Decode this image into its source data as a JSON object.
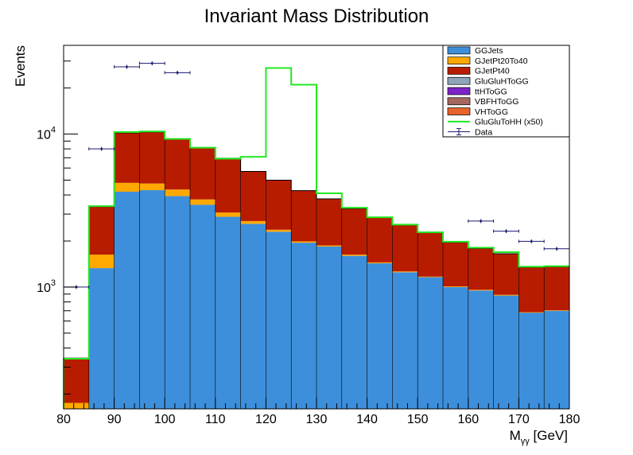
{
  "chart_data": {
    "type": "bar",
    "title": "Invariant Mass Distribution",
    "xlabel": "M",
    "xlabel_sub": "γγ",
    "xlabel_unit": "[GeV]",
    "ylabel": "Events",
    "xlim": [
      80,
      180
    ],
    "ylim": [
      160,
      38000
    ],
    "yscale": "log",
    "x_ticks": [
      80,
      90,
      100,
      110,
      120,
      130,
      140,
      150,
      160,
      170,
      180
    ],
    "y_major_ticks": [
      {
        "value": 1000,
        "base": "10",
        "exp": "3"
      },
      {
        "value": 10000,
        "base": "10",
        "exp": "4"
      }
    ],
    "bin_edges": [
      80,
      85,
      90,
      95,
      100,
      105,
      110,
      115,
      120,
      125,
      130,
      135,
      140,
      145,
      150,
      155,
      160,
      165,
      170,
      175,
      180
    ],
    "stack": [
      {
        "name": "GGJets",
        "color": "#3d8fdb",
        "values": [
          0,
          1330,
          4200,
          4300,
          3930,
          3450,
          2880,
          2590,
          2300,
          1950,
          1840,
          1600,
          1430,
          1250,
          1160,
          1000,
          950,
          880,
          680,
          700
        ]
      },
      {
        "name": "GJetPt20To40",
        "color": "#ffa800",
        "values": [
          175,
          300,
          600,
          450,
          410,
          290,
          190,
          110,
          70,
          40,
          30,
          30,
          20,
          15,
          10,
          10,
          10,
          10,
          5,
          5
        ]
      },
      {
        "name": "GJetPt40",
        "color": "#b81c00",
        "values": [
          168,
          1730,
          5400,
          5550,
          4920,
          4380,
          3880,
          3000,
          2630,
          2280,
          1900,
          1630,
          1400,
          1280,
          1100,
          950,
          830,
          760,
          665,
          655
        ]
      },
      {
        "name": "GluGluHToGG",
        "color": "#8da4b9",
        "values": []
      },
      {
        "name": "ttHToGG",
        "color": "#7d22c8",
        "values": []
      },
      {
        "name": "VBFHToGG",
        "color": "#a5675f",
        "values": []
      },
      {
        "name": "VHToGG",
        "color": "#e8632a",
        "values": []
      }
    ],
    "signal": {
      "name": "GluGluToHH (x50)",
      "color": "#22e822",
      "values": [
        340,
        3380,
        10300,
        10400,
        9300,
        8150,
        6900,
        7100,
        27000,
        21000,
        4100,
        3300,
        2860,
        2560,
        2280,
        1980,
        1810,
        1690,
        1360,
        1370
      ]
    },
    "data": {
      "name": "Data",
      "color": "#1a1a6e",
      "points": [
        {
          "x": 82.5,
          "y": 1000
        },
        {
          "x": 87.5,
          "y": 8000
        },
        {
          "x": 92.5,
          "y": 27500
        },
        {
          "x": 97.5,
          "y": 29000
        },
        {
          "x": 102.5,
          "y": 25200
        },
        {
          "x": 162.5,
          "y": 2700
        },
        {
          "x": 167.5,
          "y": 2320
        },
        {
          "x": 172.5,
          "y": 1990
        },
        {
          "x": 177.5,
          "y": 1780
        }
      ],
      "yerr_frac": 0.03
    },
    "legend": [
      {
        "label": "GGJets",
        "kind": "fill",
        "color": "#3d8fdb"
      },
      {
        "label": "GJetPt20To40",
        "kind": "fill",
        "color": "#ffa800"
      },
      {
        "label": "GJetPt40",
        "kind": "fill",
        "color": "#b81c00"
      },
      {
        "label": "GluGluHToGG",
        "kind": "fill",
        "color": "#8da4b9"
      },
      {
        "label": "ttHToGG",
        "kind": "fill",
        "color": "#7d22c8"
      },
      {
        "label": "VBFHToGG",
        "kind": "fill",
        "color": "#a5675f"
      },
      {
        "label": "VHToGG",
        "kind": "fill",
        "color": "#e8632a"
      },
      {
        "label": "GluGluToHH (x50)",
        "kind": "line",
        "color": "#22e822"
      },
      {
        "label": "Data",
        "kind": "errorbar",
        "color": "#1a1a6e"
      }
    ],
    "legend_position": "top-right"
  }
}
